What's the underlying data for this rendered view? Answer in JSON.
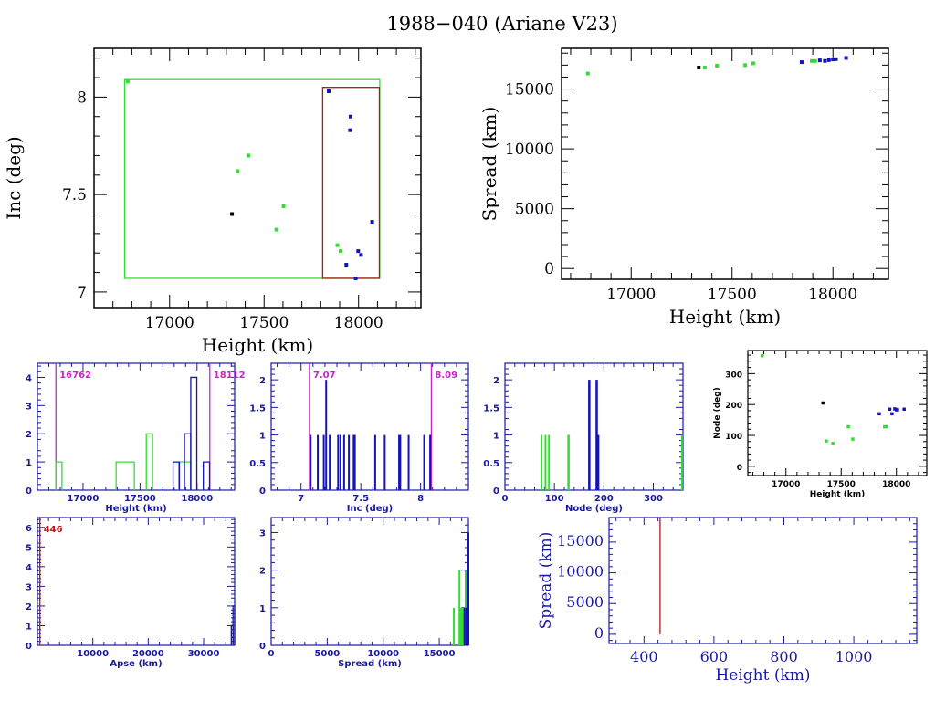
{
  "title": "1988−040 (Ariane V23)",
  "colors": {
    "green": "#33dd33",
    "blue": "#1414b4",
    "black": "#000000",
    "red": "#b41414",
    "magenta": "#cc22cc",
    "navy_axes": "#1a1aa0"
  },
  "chart_data": [
    {
      "id": "inc-vs-height",
      "type": "scatter",
      "title": "",
      "xlabel": "Height (km)",
      "ylabel": "Inc (deg)",
      "xlim": [
        16600,
        18330
      ],
      "ylim": [
        6.92,
        8.25
      ],
      "xticks": [
        17000,
        17500,
        18000
      ],
      "yticks": [
        7,
        7.5,
        8
      ],
      "ytick_labels": [
        "7",
        "7.5",
        "8"
      ],
      "boxes": [
        {
          "name": "green-range-box",
          "color": "green",
          "x": [
            16762,
            18112
          ],
          "y": [
            7.07,
            8.09
          ]
        },
        {
          "name": "red-range-box",
          "color": "red",
          "x": [
            17810,
            18110
          ],
          "y": [
            7.07,
            8.05
          ]
        }
      ],
      "series": [
        {
          "name": "green",
          "color": "green",
          "points": [
            [
              16778,
              8.08
            ],
            [
              17360,
              7.62
            ],
            [
              17418,
              7.7
            ],
            [
              17565,
              7.32
            ],
            [
              17603,
              7.44
            ],
            [
              17888,
              7.24
            ],
            [
              17905,
              7.21
            ]
          ]
        },
        {
          "name": "blue",
          "color": "blue",
          "points": [
            [
              17842,
              8.03
            ],
            [
              17958,
              7.9
            ],
            [
              17955,
              7.83
            ],
            [
              18072,
              7.36
            ],
            [
              17998,
              7.21
            ],
            [
              18013,
              7.19
            ],
            [
              17935,
              7.14
            ],
            [
              17985,
              7.07
            ]
          ]
        },
        {
          "name": "black",
          "color": "black",
          "points": [
            [
              17330,
              7.4
            ]
          ]
        }
      ]
    },
    {
      "id": "spread-vs-height",
      "type": "scatter",
      "xlabel": "Height (km)",
      "ylabel": "Spread (km)",
      "xlim": [
        16655,
        18275
      ],
      "ylim": [
        -900,
        18400
      ],
      "xticks": [
        17000,
        17500,
        18000
      ],
      "yticks": [
        0,
        5000,
        10000,
        15000
      ],
      "series": [
        {
          "name": "green",
          "color": "green",
          "points": [
            [
              16785,
              16300
            ],
            [
              17365,
              16800
            ],
            [
              17425,
              16950
            ],
            [
              17565,
              17000
            ],
            [
              17605,
              17150
            ],
            [
              17895,
              17350
            ],
            [
              17912,
              17350
            ]
          ]
        },
        {
          "name": "blue",
          "color": "blue",
          "points": [
            [
              17845,
              17250
            ],
            [
              17935,
              17400
            ],
            [
              17960,
              17350
            ],
            [
              17980,
              17420
            ],
            [
              18000,
              17480
            ],
            [
              18015,
              17500
            ],
            [
              18065,
              17600
            ]
          ]
        },
        {
          "name": "black",
          "color": "black",
          "points": [
            [
              17335,
              16800
            ]
          ]
        }
      ]
    },
    {
      "id": "height-histogram",
      "type": "bar",
      "xlabel": "Height (km)",
      "ylabel": "",
      "xlim": [
        16600,
        18330
      ],
      "ylim": [
        0,
        4.5
      ],
      "xticks": [
        17000,
        17500,
        18000
      ],
      "xtick_labels": [
        "17000",
        "17500",
        "18000"
      ],
      "yticks": [
        0,
        1,
        2,
        3,
        4
      ],
      "markers": [
        {
          "value": 16762,
          "label": "16762"
        },
        {
          "value": 18112,
          "label": "18112"
        }
      ],
      "series": [
        {
          "name": "green",
          "color": "green",
          "bins": [
            [
              16762,
              16815,
              1
            ],
            [
              17290,
              17450,
              1
            ],
            [
              17555,
              17610,
              2
            ],
            [
              17840,
              17945,
              1
            ]
          ]
        },
        {
          "name": "blue",
          "color": "blue",
          "bins": [
            [
              17790,
              17845,
              1
            ],
            [
              17890,
              17945,
              2
            ],
            [
              17945,
              17998,
              4
            ],
            [
              18055,
              18110,
              1
            ]
          ]
        }
      ]
    },
    {
      "id": "inc-histogram",
      "type": "bar",
      "xlabel": "Inc (deg)",
      "xlim": [
        6.75,
        8.4
      ],
      "ylim": [
        0,
        2.3
      ],
      "xticks": [
        7,
        7.5,
        8
      ],
      "xtick_labels": [
        "7",
        "7.5",
        "8"
      ],
      "yticks": [
        0,
        0.5,
        1,
        1.5,
        2
      ],
      "ytick_labels": [
        "0",
        "0.5",
        "1",
        "1.5",
        "2"
      ],
      "markers": [
        {
          "value": 7.07,
          "label": "7.07"
        },
        {
          "value": 8.09,
          "label": "8.09"
        }
      ],
      "series": [
        {
          "name": "blue",
          "color": "blue",
          "lines": [
            [
              7.08,
              1
            ],
            [
              7.14,
              1
            ],
            [
              7.19,
              1
            ],
            [
              7.21,
              2
            ],
            [
              7.24,
              1
            ],
            [
              7.31,
              1
            ],
            [
              7.33,
              1
            ],
            [
              7.36,
              1
            ],
            [
              7.4,
              1
            ],
            [
              7.44,
              1
            ],
            [
              7.45,
              1
            ],
            [
              7.62,
              1
            ],
            [
              7.7,
              1
            ],
            [
              7.82,
              1
            ],
            [
              7.83,
              1
            ],
            [
              7.9,
              1
            ],
            [
              8.03,
              1
            ],
            [
              8.08,
              1
            ]
          ]
        }
      ]
    },
    {
      "id": "node-histogram",
      "type": "bar",
      "xlabel": "Node (deg)",
      "xlim": [
        0,
        360
      ],
      "ylim": [
        0,
        2.3
      ],
      "xticks": [
        0,
        100,
        200,
        300
      ],
      "yticks": [
        0,
        0.5,
        1,
        1.5,
        2
      ],
      "ytick_labels": [
        "0",
        "0.5",
        "1",
        "1.5",
        "2"
      ],
      "series": [
        {
          "name": "green",
          "color": "green",
          "lines": [
            [
              74,
              1
            ],
            [
              82,
              1
            ],
            [
              89,
              1
            ],
            [
              128,
              1
            ],
            [
              129,
              1
            ],
            [
              358,
              1
            ]
          ]
        },
        {
          "name": "blue",
          "color": "blue",
          "lines": [
            [
              170,
              2
            ],
            [
              171,
              2
            ],
            [
              185,
              2
            ],
            [
              186,
              2
            ],
            [
              188,
              1
            ],
            [
              189,
              1
            ]
          ]
        }
      ]
    },
    {
      "id": "node-vs-height",
      "type": "scatter",
      "xlabel": "Height (km)",
      "ylabel": "Node (deg)",
      "xlim": [
        16655,
        18275
      ],
      "ylim": [
        -30,
        375
      ],
      "xticks": [
        17000,
        17500,
        18000
      ],
      "yticks": [
        0,
        100,
        200,
        300
      ],
      "series": [
        {
          "name": "green",
          "color": "green",
          "points": [
            [
              16785,
              358
            ],
            [
              17365,
              82
            ],
            [
              17425,
              74
            ],
            [
              17565,
              128
            ],
            [
              17605,
              88
            ],
            [
              17893,
              128
            ],
            [
              17908,
              128
            ]
          ]
        },
        {
          "name": "blue",
          "color": "blue",
          "points": [
            [
              17845,
              170
            ],
            [
              17940,
              185
            ],
            [
              17960,
              170
            ],
            [
              17985,
              186
            ],
            [
              18000,
              183
            ],
            [
              18010,
              183
            ],
            [
              18070,
              185
            ]
          ]
        },
        {
          "name": "black",
          "color": "black",
          "points": [
            [
              17335,
              205
            ]
          ]
        }
      ]
    },
    {
      "id": "apse-histogram",
      "type": "bar",
      "xlabel": "Apse (km)",
      "xlim": [
        0,
        35600
      ],
      "ylim": [
        0,
        6.5
      ],
      "xticks": [
        10000,
        20000,
        30000
      ],
      "yticks": [
        0,
        1,
        2,
        3,
        4,
        5,
        6
      ],
      "markers": [
        {
          "value": 446,
          "label": "446",
          "color": "red"
        }
      ],
      "series": [
        {
          "name": "blue",
          "color": "blue",
          "bins": [
            [
              35000,
              35300,
              1
            ],
            [
              35300,
              35600,
              2
            ]
          ]
        }
      ]
    },
    {
      "id": "spread-histogram",
      "type": "bar",
      "xlabel": "Spread (km)",
      "xlim": [
        0,
        17600
      ],
      "ylim": [
        0,
        3.4
      ],
      "xticks": [
        0,
        5000,
        10000,
        15000
      ],
      "yticks": [
        0,
        1,
        2,
        3
      ],
      "series": [
        {
          "name": "green",
          "color": "green",
          "lines": [
            [
              16300,
              1
            ],
            [
              16800,
              2
            ],
            [
              16950,
              1
            ],
            [
              17000,
              1
            ],
            [
              17150,
              1
            ],
            [
              17350,
              2
            ]
          ]
        },
        {
          "name": "blue",
          "color": "blue",
          "lines": [
            [
              17250,
              1
            ],
            [
              17420,
              1
            ],
            [
              17500,
              2
            ],
            [
              17600,
              3
            ]
          ]
        }
      ]
    },
    {
      "id": "spread-vs-height-low",
      "type": "line",
      "xlabel": "Height (km)",
      "ylabel": "Spread (km)",
      "xlim": [
        300,
        1180
      ],
      "ylim": [
        -1500,
        19000
      ],
      "xticks": [
        400,
        600,
        800,
        1000
      ],
      "yticks": [
        0,
        5000,
        10000,
        15000
      ],
      "markers": [
        {
          "value": 446,
          "color": "red",
          "y": [
            0,
            19000
          ]
        }
      ]
    }
  ]
}
